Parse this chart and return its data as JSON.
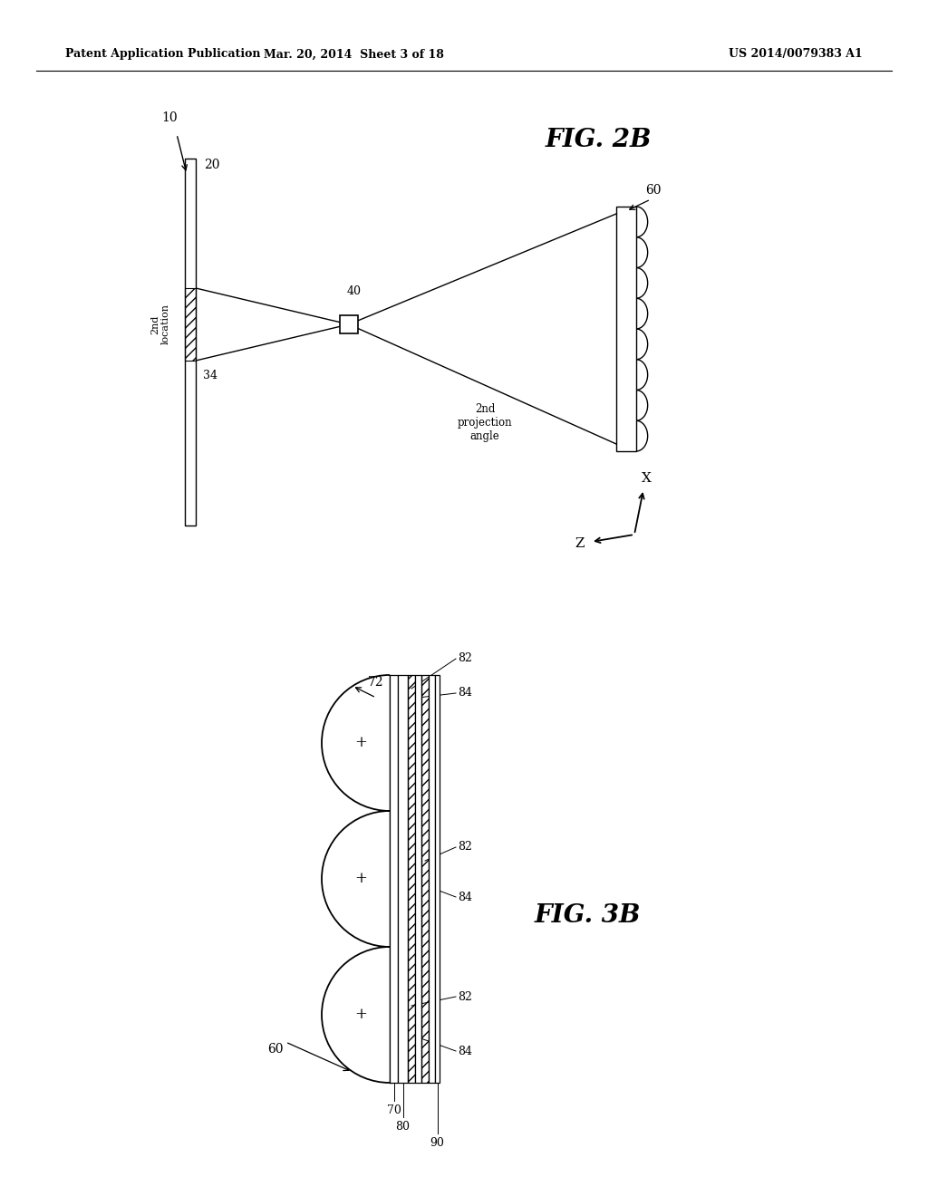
{
  "bg_color": "#ffffff",
  "header_left": "Patent Application Publication",
  "header_mid": "Mar. 20, 2014  Sheet 3 of 18",
  "header_right": "US 2014/0079383 A1",
  "fig2b_label": "FIG. 2B",
  "fig3b_label": "FIG. 3B",
  "label_10": "10",
  "label_20": "20",
  "label_34": "34",
  "label_40": "40",
  "label_60_top": "60",
  "label_60_bot": "60",
  "label_72": "72",
  "label_70": "70",
  "label_80": "80",
  "label_82a": "82",
  "label_82b": "82",
  "label_82c": "82",
  "label_84a": "84",
  "label_84b": "84",
  "label_84c": "84",
  "label_90": "90",
  "text_2nd_location": "2nd\nlocation",
  "text_2nd_projection": "2nd\nprojection\nangle",
  "label_Z": "Z",
  "label_X": "X"
}
